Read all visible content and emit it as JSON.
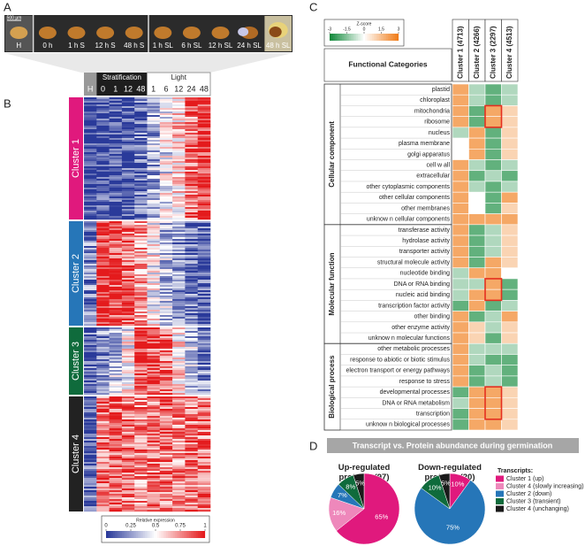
{
  "panel_a": {
    "letter": "A",
    "scale_bar": "500 µm",
    "stages": [
      "H",
      "0 h",
      "1 h S",
      "12 h S",
      "48 h S",
      "1 h SL",
      "6 h SL",
      "12 h SL",
      "24 h SL",
      "48 h SL"
    ]
  },
  "panel_b": {
    "letter": "B",
    "hydrated": "H",
    "stratification": "Stratification",
    "strat_times": [
      "0",
      "1",
      "12",
      "48"
    ],
    "light": "Light",
    "light_times": [
      "1",
      "6",
      "12",
      "24",
      "48"
    ],
    "clusters": [
      "Cluster 1",
      "Cluster 2",
      "Cluster 3",
      "Cluster 4"
    ],
    "cluster_colors": [
      "#e0197d",
      "#2676b8",
      "#0f6b3c",
      "#222222"
    ],
    "legend": {
      "title": "Relative expression",
      "ticks": [
        0,
        0.25,
        0.5,
        0.75,
        1
      ]
    }
  },
  "panel_c": {
    "letter": "C",
    "legend": {
      "title": "Z-score",
      "ticks": [
        -3,
        -1.5,
        0,
        1.5,
        3
      ]
    },
    "header": "Functional Categories",
    "columns": [
      "Cluster 1 (4713)",
      "Cluster 2 (4266)",
      "Cluster 3 (2297)",
      "Cluster 4 (4513)"
    ],
    "sections": [
      {
        "name": "Cellular component",
        "rows": [
          "plastid",
          "chloroplast",
          "mitochondria",
          "ribosome",
          "nucleus",
          "plasma membrane",
          "golgi apparatus",
          "cell w all",
          "extracellular",
          "other cytoplasmic components",
          "other cellular components",
          "other membranes",
          "unknow n cellular components"
        ],
        "values": [
          [
            2,
            -1,
            -2,
            -1
          ],
          [
            2,
            -1,
            -2,
            -1
          ],
          [
            2,
            -2,
            2,
            1
          ],
          [
            2,
            -2,
            2,
            1
          ],
          [
            -1,
            2,
            -2,
            1
          ],
          [
            0,
            2,
            -2,
            1
          ],
          [
            0,
            2,
            -2,
            1
          ],
          [
            2,
            -1,
            -2,
            -1
          ],
          [
            2,
            -2,
            -1,
            -2
          ],
          [
            2,
            -1,
            -2,
            -1
          ],
          [
            2,
            0,
            -2,
            2
          ],
          [
            2,
            0,
            -2,
            1
          ],
          [
            2,
            2,
            2,
            2
          ]
        ]
      },
      {
        "name": "Molecular function",
        "rows": [
          "transferase activity",
          "hydrolase activity",
          "transporter activity",
          "structural molecule activity",
          "nucleotide binding",
          "DNA or RNA binding",
          "nucleic acid binding",
          "transcription factor activity",
          "other binding",
          "other enzyme activity",
          "unknow n molecular functions"
        ],
        "values": [
          [
            2,
            -2,
            -1,
            1
          ],
          [
            2,
            -2,
            -1,
            1
          ],
          [
            2,
            -2,
            -1,
            1
          ],
          [
            2,
            -2,
            2,
            1
          ],
          [
            -1,
            2,
            2,
            0
          ],
          [
            -1,
            -1,
            2,
            -2
          ],
          [
            -1,
            2,
            2,
            -2
          ],
          [
            -2,
            2,
            -2,
            -1
          ],
          [
            2,
            -2,
            -1,
            2
          ],
          [
            2,
            1,
            -1,
            1
          ],
          [
            2,
            1,
            -2,
            1
          ]
        ]
      },
      {
        "name": "Biological process",
        "rows": [
          "other metabolic processes",
          "response to abiotic or biotic stimulus",
          "electron transport or energy pathways",
          "response to stress",
          "developmental processes",
          "DNA or RNA metabolism",
          "transcription",
          "unknow n biological processes"
        ],
        "values": [
          [
            2,
            -1,
            -1,
            -1
          ],
          [
            2,
            -1,
            -2,
            -2
          ],
          [
            2,
            -2,
            -1,
            -2
          ],
          [
            2,
            -2,
            -1,
            -2
          ],
          [
            -2,
            2,
            2,
            1
          ],
          [
            -1,
            2,
            2,
            1
          ],
          [
            -2,
            2,
            2,
            1
          ],
          [
            -2,
            2,
            2,
            1
          ]
        ]
      }
    ]
  },
  "panel_d": {
    "letter": "D",
    "title": "Transcript vs. Protein abundance during germination",
    "legend_title": "Transcripts:",
    "legend": [
      "Cluster 1 (up)",
      "Cluster 4 (slowly increasing)",
      "Cluster 2 (down)",
      "Cluster 3 (transient)",
      "Cluster 4 (unchanging)"
    ],
    "colors": [
      "#e0197d",
      "#ee88bb",
      "#2676b8",
      "#0f6b3c",
      "#1a1a1a"
    ],
    "pies": [
      {
        "title": "Up-regulated proteins (97)",
        "values": [
          65,
          16,
          7,
          8,
          5
        ],
        "value_labels": [
          "65%",
          "16%",
          "7%",
          "8%",
          "5%"
        ]
      },
      {
        "title": "Down-regulated proteins (20)",
        "values": [
          10,
          0,
          75,
          10,
          5
        ],
        "value_labels": [
          "10%",
          null,
          "75%",
          "10%",
          "5%"
        ]
      }
    ]
  }
}
